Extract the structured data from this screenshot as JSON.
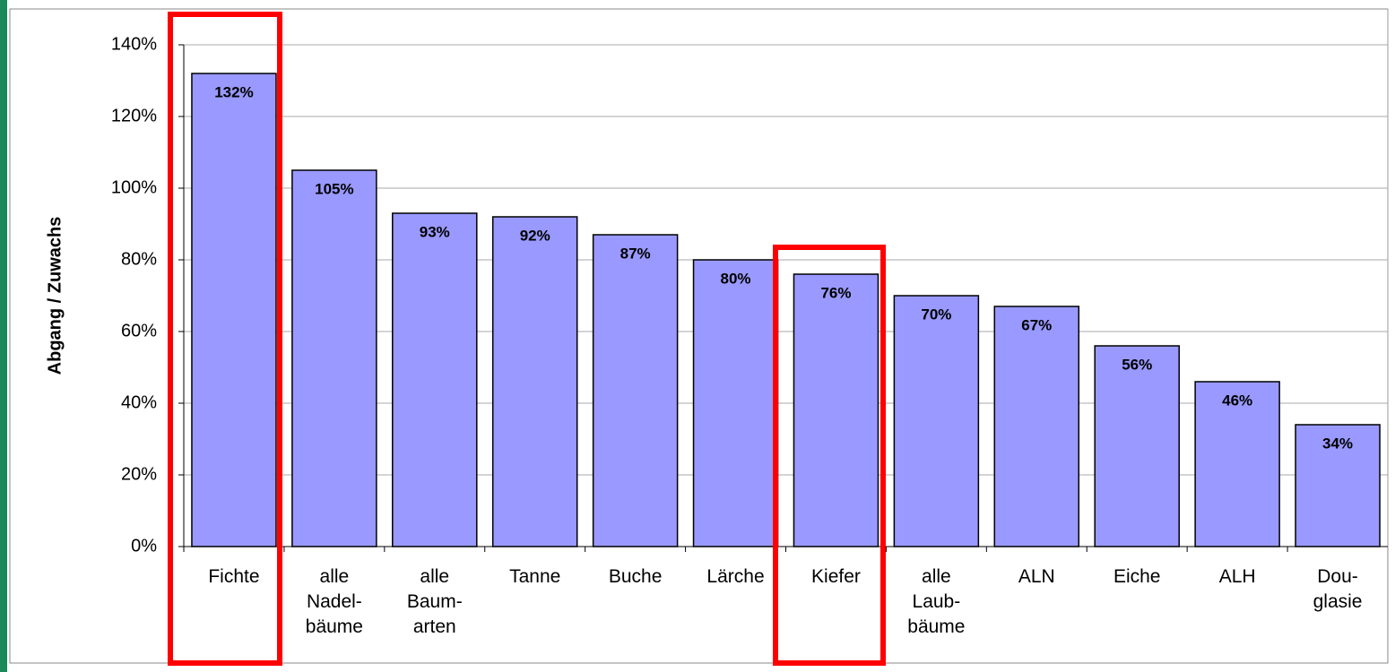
{
  "chart_data": {
    "type": "bar",
    "y_label": "Abgang / Zuwachs",
    "categories": [
      "Fichte",
      "alle\nNadel-\nbäume",
      "alle\nBaum-\narten",
      "Tanne",
      "Buche",
      "Lärche",
      "Kiefer",
      "alle\nLaub-\nbäume",
      "ALN",
      "Eiche",
      "ALH",
      "Dou-\nglasie"
    ],
    "values": [
      132,
      105,
      93,
      92,
      87,
      80,
      76,
      70,
      67,
      56,
      46,
      34
    ],
    "value_labels": [
      "132%",
      "105%",
      "93%",
      "92%",
      "87%",
      "80%",
      "76%",
      "70%",
      "67%",
      "56%",
      "46%",
      "34%"
    ],
    "color": "#9999ff",
    "ylim": [
      0,
      140
    ],
    "yticks": [
      {
        "value": 0,
        "label": "0%"
      },
      {
        "value": 20,
        "label": "20%"
      },
      {
        "value": 40,
        "label": "40%"
      },
      {
        "value": 60,
        "label": "60%"
      },
      {
        "value": 80,
        "label": "80%"
      },
      {
        "value": 100,
        "label": "100%"
      },
      {
        "value": 120,
        "label": "120%"
      },
      {
        "value": 140,
        "label": "140%"
      }
    ],
    "grid": true
  }
}
